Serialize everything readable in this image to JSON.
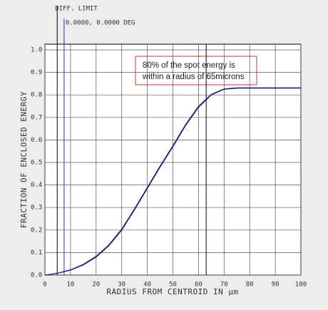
{
  "chart_data": {
    "type": "line",
    "x": [
      0,
      5,
      10,
      15,
      20,
      25,
      30,
      35,
      40,
      45,
      50,
      55,
      60,
      65,
      70,
      75,
      80,
      85,
      90,
      95,
      100
    ],
    "series": [
      {
        "color": "#000000",
        "values": [
          0,
          0.008,
          0.022,
          0.045,
          0.08,
          0.13,
          0.2,
          0.29,
          0.385,
          0.48,
          0.57,
          0.665,
          0.745,
          0.8,
          0.825,
          0.83,
          0.83,
          0.83,
          0.83,
          0.83,
          0.83
        ]
      },
      {
        "color": "#2b2bd6",
        "values": [
          0,
          0.009,
          0.024,
          0.048,
          0.084,
          0.135,
          0.205,
          0.295,
          0.39,
          0.485,
          0.575,
          0.67,
          0.75,
          0.803,
          0.827,
          0.832,
          0.832,
          0.832,
          0.832,
          0.832,
          0.832
        ]
      }
    ],
    "xlabel": "RADIUS FROM CENTROID IN µm",
    "ylabel": "FRACTION OF ENCLOSED ENERGY",
    "xlim": [
      0,
      100
    ],
    "ylim": [
      0,
      1
    ],
    "xticks": [
      0,
      10,
      20,
      30,
      40,
      50,
      60,
      70,
      80,
      90,
      100
    ],
    "yticks": [
      {
        "value": 0,
        "label": "0.0"
      },
      0.1,
      0.2,
      0.3,
      0.4,
      0.5,
      0.6,
      0.7,
      0.8,
      0.9,
      {
        "value": 1,
        "label": "1.0"
      }
    ],
    "grid": true,
    "vlines": [
      {
        "x": 4.8,
        "color": "#000000",
        "label": "DIFF. LIMIT"
      },
      {
        "x": 7.5,
        "color": "#2b2bd6",
        "label": "0.0000, 0.0000 DEG"
      },
      {
        "x": 63,
        "color": "#000000"
      }
    ],
    "annotation": [
      "80% of the spot energy is",
      "within a radius of 65microns"
    ]
  }
}
